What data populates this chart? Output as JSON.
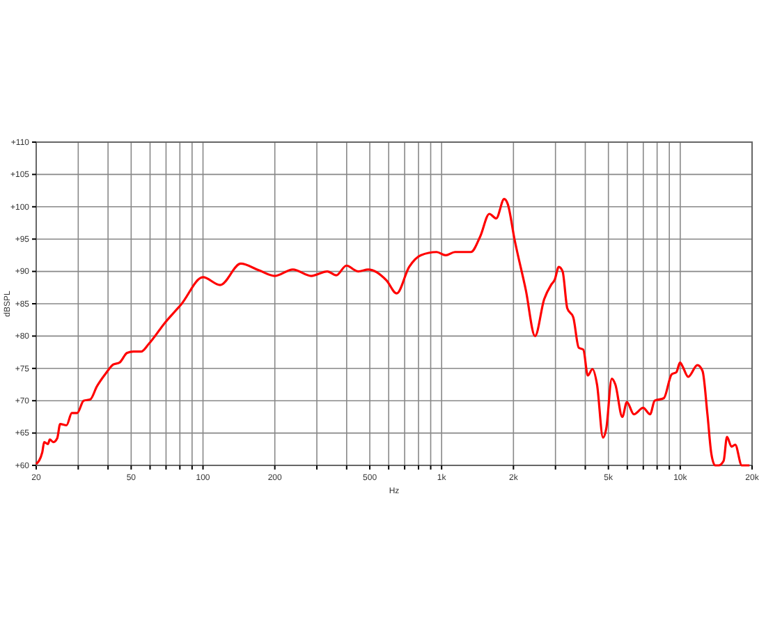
{
  "chart_data": {
    "type": "line",
    "xlabel": "Hz",
    "ylabel": "dBSPL",
    "log": "x",
    "grid": true,
    "marker": "none",
    "line_style": "solid",
    "xlim": [
      20,
      20000
    ],
    "ylim": [
      60,
      110
    ],
    "xticks": [
      20,
      {
        "value": 30,
        "label": null
      },
      {
        "value": 40,
        "label": null
      },
      50,
      {
        "value": 60,
        "label": null
      },
      {
        "value": 70,
        "label": null
      },
      {
        "value": 80,
        "label": null
      },
      {
        "value": 90,
        "label": null
      },
      100,
      200,
      {
        "value": 300,
        "label": null
      },
      {
        "value": 400,
        "label": null
      },
      500,
      {
        "value": 600,
        "label": null
      },
      {
        "value": 700,
        "label": null
      },
      {
        "value": 800,
        "label": null
      },
      {
        "value": 900,
        "label": null
      },
      {
        "value": 1000,
        "label": "1k"
      },
      {
        "value": 2000,
        "label": "2k"
      },
      {
        "value": 3000,
        "label": null
      },
      {
        "value": 4000,
        "label": null
      },
      {
        "value": 5000,
        "label": "5k"
      },
      {
        "value": 6000,
        "label": null
      },
      {
        "value": 7000,
        "label": null
      },
      {
        "value": 8000,
        "label": null
      },
      {
        "value": 9000,
        "label": null
      },
      {
        "value": 10000,
        "label": "10k"
      },
      {
        "value": 20000,
        "label": "20k"
      }
    ],
    "yticks": [
      {
        "value": 60,
        "label": "+60"
      },
      {
        "value": 65,
        "label": "+65"
      },
      {
        "value": 70,
        "label": "+70"
      },
      {
        "value": 75,
        "label": "+75"
      },
      {
        "value": 80,
        "label": "+80"
      },
      {
        "value": 85,
        "label": "+85"
      },
      {
        "value": 90,
        "label": "+90"
      },
      {
        "value": 95,
        "label": "+95"
      },
      {
        "value": 100,
        "label": "+100"
      },
      {
        "value": 105,
        "label": "+105"
      },
      {
        "value": 110,
        "label": "+110"
      }
    ],
    "series": [
      {
        "color": "#ff0000",
        "x": [
          20,
          21.2,
          21.6,
          22.4,
          22.8,
          23.6,
          24.5,
          25.2,
          26.8,
          28.2,
          29.7,
          31.6,
          33.7,
          35.9,
          39.1,
          42.1,
          44.7,
          48.1,
          51.1,
          55,
          59.3,
          69.4,
          81,
          100,
          118,
          144,
          171,
          200,
          238,
          284,
          332,
          362,
          399,
          447,
          493,
          588,
          648,
          731,
          817,
          953,
          1040,
          1137,
          1327,
          1451,
          1585,
          1693,
          1829,
          1894,
          2020,
          2254,
          2463,
          2690,
          2874,
          2977,
          3098,
          3214,
          3362,
          3562,
          3755,
          3925,
          4100,
          4286,
          4480,
          4747,
          4898,
          5165,
          5348,
          5717,
          5976,
          6393,
          6990,
          7476,
          7812,
          8540,
          9210,
          9630,
          9980,
          10200,
          10800,
          11800,
          12400,
          13000,
          13500,
          14000,
          14500,
          15200,
          15700,
          16400,
          17000,
          18100,
          19500
        ],
        "values": [
          60.2,
          62,
          63.6,
          63.3,
          64,
          63.6,
          64.2,
          66.4,
          66.2,
          68.1,
          68.1,
          70,
          70.2,
          72.2,
          74.2,
          75.6,
          75.9,
          77.4,
          77.6,
          77.6,
          78.8,
          82.1,
          84.9,
          89.1,
          87.9,
          91.2,
          90.2,
          89.3,
          90.3,
          89.3,
          90,
          89.4,
          90.9,
          90,
          90.3,
          88.6,
          86.6,
          90.7,
          92.5,
          93,
          92.5,
          93,
          93,
          95.4,
          98.9,
          98.2,
          101.2,
          100.4,
          95,
          87.1,
          80,
          85.7,
          87.9,
          88.7,
          90.7,
          90,
          84.3,
          82.9,
          78.2,
          77.9,
          73.9,
          74.9,
          72.5,
          64.3,
          65.7,
          73.4,
          72.5,
          67.5,
          69.8,
          67.9,
          68.9,
          67.9,
          70,
          70.4,
          74.1,
          74.4,
          75.9,
          75.4,
          73.7,
          75.5,
          74.6,
          67.9,
          61.8,
          60,
          60,
          60.7,
          64.4,
          62.9,
          63.2,
          60,
          60
        ]
      }
    ]
  }
}
